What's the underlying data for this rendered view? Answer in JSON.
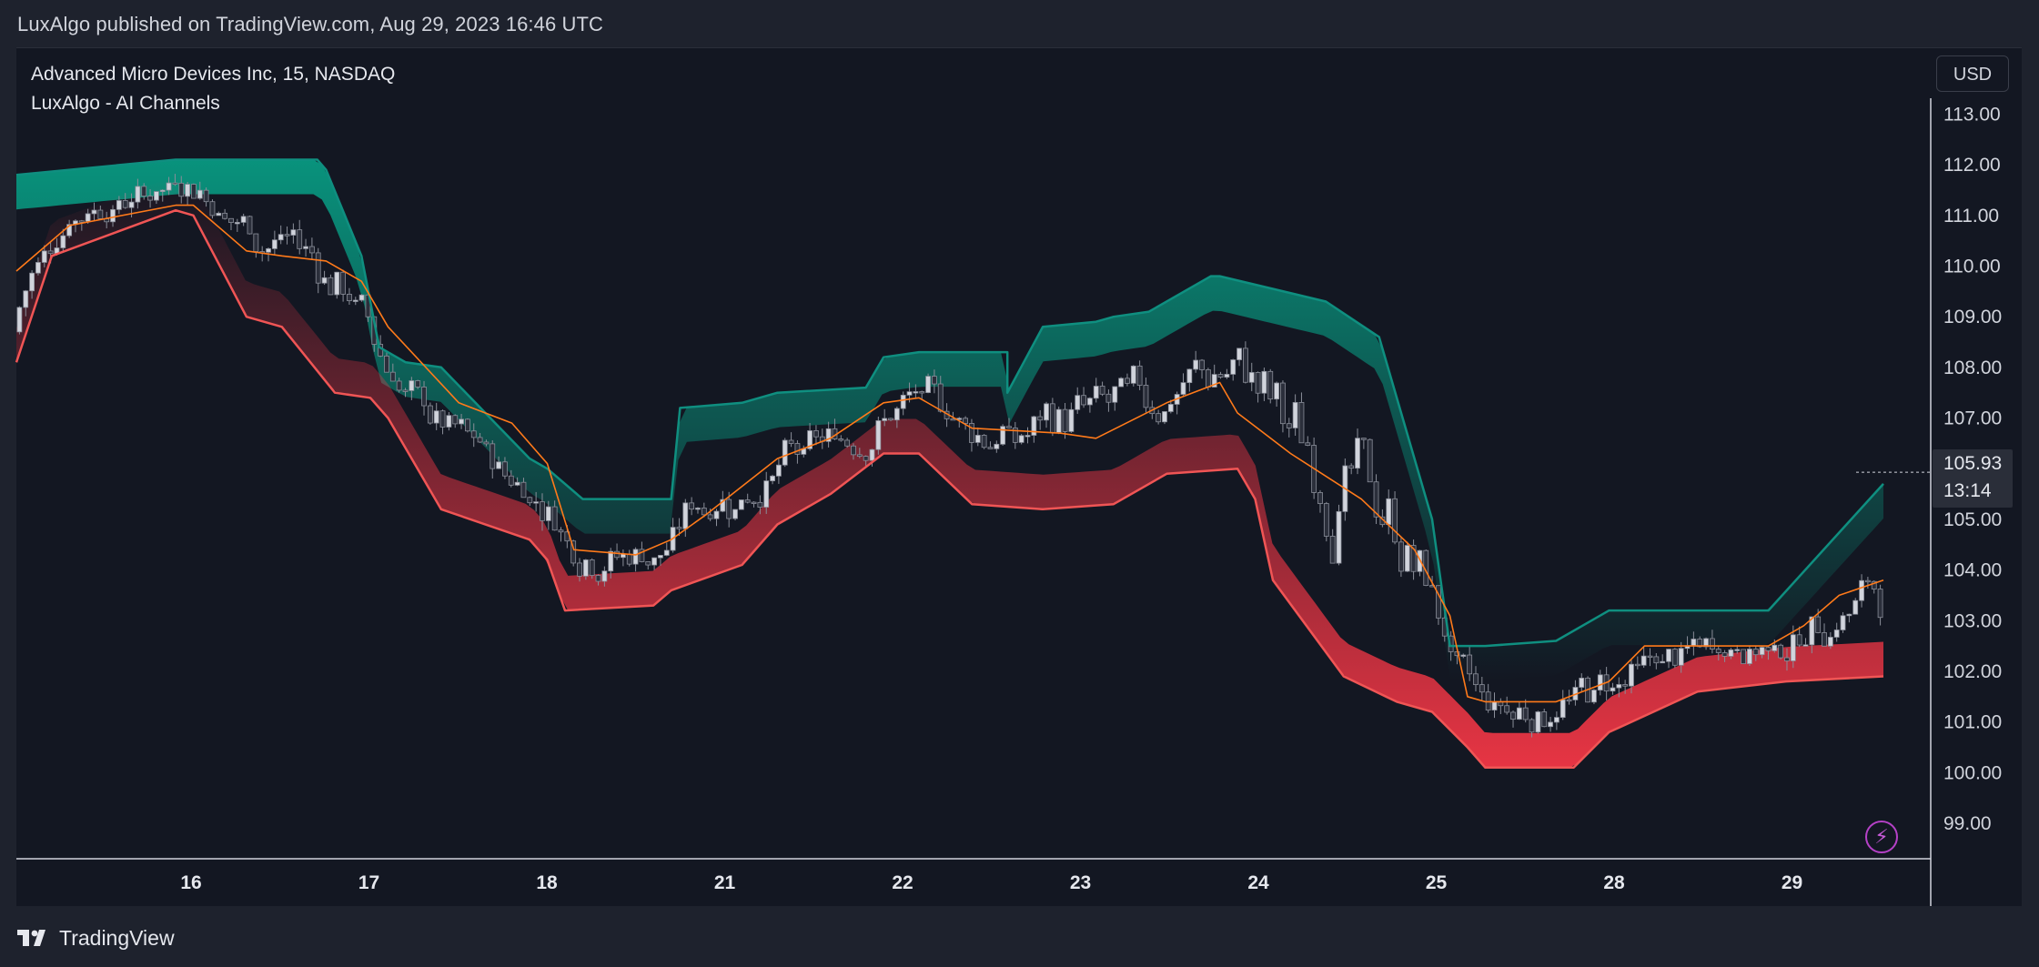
{
  "header": {
    "published": "LuxAlgo published on TradingView.com, Aug 29, 2023 16:46 UTC"
  },
  "legend": {
    "symbol": "Advanced Micro Devices Inc, 15, NASDAQ",
    "indicator": "LuxAlgo - AI Channels"
  },
  "currency": "USD",
  "last_price": {
    "price": "105.93",
    "countdown": "13:14"
  },
  "footer": {
    "brand": "TradingView"
  },
  "colors": {
    "background": "#131722",
    "upper_band": "#0f8f80",
    "lower_band": "#f05555",
    "middle_line": "#ff7a1a",
    "candle_up": "#d1d4dc",
    "candle_down": "#2b2f3b",
    "bolt": "#b541c7"
  },
  "icons": {
    "bolt": "lightning-bolt-icon",
    "logo": "tradingview-logo-icon"
  },
  "chart_data": {
    "type": "line",
    "title": "Advanced Micro Devices Inc, 15, NASDAQ",
    "indicator": "LuxAlgo - AI Channels",
    "ylim": [
      98.3,
      113.6
    ],
    "y_ticks": [
      "99.00",
      "100.00",
      "101.00",
      "102.00",
      "103.00",
      "104.00",
      "105.00",
      "107.00",
      "108.00",
      "109.00",
      "110.00",
      "111.00",
      "112.00",
      "113.00"
    ],
    "x_ticks": [
      "16",
      "17",
      "18",
      "21",
      "22",
      "23",
      "24",
      "25",
      "28",
      "29"
    ],
    "x_range": [
      0,
      10.55
    ],
    "last_price": 105.93,
    "series": [
      {
        "name": "Upper band",
        "x": [
          0,
          0.9,
          1.7,
          1.75,
          1.95,
          2.05,
          2.2,
          2.4,
          2.9,
          3.0,
          3.2,
          3.7,
          3.75,
          4.1,
          4.3,
          4.8,
          4.9,
          5.1,
          5.6,
          5.6,
          5.8,
          6.1,
          6.2,
          6.4,
          6.75,
          6.8,
          7.4,
          7.7,
          8.0,
          8.1,
          8.3,
          8.7,
          9.0,
          9.9,
          10.55
        ],
        "values": [
          111.8,
          112.1,
          112.1,
          111.9,
          110.2,
          108.4,
          108.1,
          108.0,
          106.2,
          106.0,
          105.4,
          105.4,
          107.2,
          107.3,
          107.5,
          107.6,
          108.2,
          108.3,
          108.3,
          107.5,
          108.8,
          108.9,
          109.0,
          109.1,
          109.8,
          109.8,
          109.3,
          108.6,
          105.0,
          102.5,
          102.5,
          102.6,
          103.2,
          103.2,
          105.7
        ]
      },
      {
        "name": "Middle line",
        "x": [
          0,
          0.3,
          0.9,
          1.0,
          1.3,
          1.5,
          1.75,
          1.95,
          2.1,
          2.5,
          2.8,
          3.0,
          3.15,
          3.5,
          3.7,
          3.9,
          4.3,
          4.6,
          4.9,
          5.1,
          5.4,
          5.9,
          6.1,
          6.5,
          6.8,
          6.9,
          7.2,
          7.6,
          7.9,
          8.1,
          8.2,
          8.3,
          8.7,
          9.0,
          9.2,
          9.4,
          9.9,
          10.1,
          10.3,
          10.55
        ],
        "values": [
          109.9,
          110.8,
          111.2,
          111.2,
          110.3,
          110.2,
          110.1,
          109.7,
          108.8,
          107.3,
          106.9,
          106.1,
          104.4,
          104.3,
          104.6,
          105.1,
          106.2,
          106.6,
          107.3,
          107.4,
          106.8,
          106.7,
          106.6,
          107.3,
          107.7,
          107.1,
          106.3,
          105.4,
          104.4,
          103.1,
          101.5,
          101.4,
          101.4,
          101.8,
          102.5,
          102.5,
          102.5,
          102.9,
          103.5,
          103.8
        ]
      },
      {
        "name": "Lower band",
        "x": [
          0,
          0.2,
          0.9,
          1.0,
          1.3,
          1.5,
          1.8,
          2.0,
          2.1,
          2.4,
          2.9,
          3.0,
          3.1,
          3.6,
          3.7,
          4.1,
          4.3,
          4.6,
          4.9,
          5.1,
          5.4,
          5.8,
          6.2,
          6.5,
          6.9,
          7.0,
          7.1,
          7.5,
          7.8,
          8.0,
          8.2,
          8.3,
          8.6,
          8.8,
          9.0,
          9.5,
          10.0,
          10.55
        ],
        "values": [
          108.1,
          110.2,
          111.1,
          111.0,
          109.0,
          108.8,
          107.5,
          107.4,
          107.0,
          105.2,
          104.6,
          104.2,
          103.2,
          103.3,
          103.6,
          104.1,
          104.9,
          105.5,
          106.3,
          106.3,
          105.3,
          105.2,
          105.3,
          105.9,
          106.0,
          105.4,
          103.8,
          101.9,
          101.4,
          101.2,
          100.5,
          100.1,
          100.1,
          100.1,
          100.8,
          101.6,
          101.8,
          101.9
        ]
      }
    ]
  }
}
